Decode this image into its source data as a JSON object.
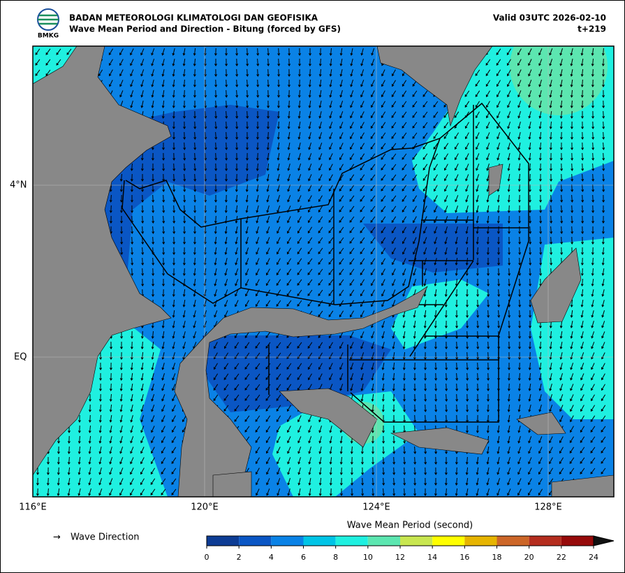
{
  "header": {
    "logo_text": "BMKG",
    "agency": "BADAN METEOROLOGI KLIMATOLOGI DAN GEOFISIKA",
    "title": "Wave Mean Period and Direction - Bitung (forced by GFS)",
    "valid": "Valid 03UTC 2026-02-10",
    "lead": "t+219"
  },
  "map": {
    "lat_labels": [
      "4°N",
      "EQ"
    ],
    "lon_labels": [
      "116°E",
      "120°E",
      "124°E",
      "128°E"
    ]
  },
  "legend": {
    "symbol": "→",
    "label": "Wave Direction"
  },
  "colorbar": {
    "title": "Wave Mean Period (second)",
    "ticks": [
      0,
      2,
      4,
      6,
      8,
      10,
      12,
      14,
      16,
      18,
      20,
      22,
      24
    ],
    "colors": [
      "#0d3c94",
      "#0a56c4",
      "#0a82e6",
      "#00c4e6",
      "#1ff0e0",
      "#5ce6b0",
      "#c8e650",
      "#ffff00",
      "#e6b400",
      "#cc6628",
      "#b42d1e",
      "#960a0a"
    ]
  }
}
